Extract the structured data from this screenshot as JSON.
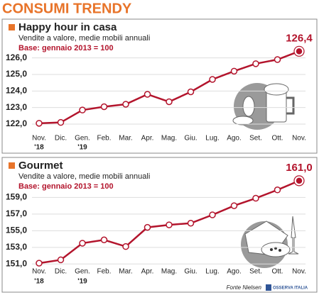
{
  "title": "CONSUMI TRENDY",
  "source": "Fonte Nielsen",
  "logo": "OSSERVA ITALIA",
  "chart_data": [
    {
      "type": "line",
      "title": "Happy hour in casa",
      "subtitle": "Vendite a valore, medie mobili annuali",
      "note": "Base: gennaio 2013 = 100",
      "categories": [
        "Nov.",
        "Dic.",
        "Gen.",
        "Feb.",
        "Mar.",
        "Apr.",
        "Mag.",
        "Giu.",
        "Lug.",
        "Ago.",
        "Set.",
        "Ott.",
        "Nov."
      ],
      "year_labels": [
        "'18",
        null,
        "'19",
        null,
        null,
        null,
        null,
        null,
        null,
        null,
        null,
        null,
        null
      ],
      "series": [
        {
          "color": "#b3142c",
          "values": [
            122.05,
            122.1,
            122.85,
            123.05,
            123.2,
            123.8,
            123.35,
            123.95,
            124.7,
            125.2,
            125.65,
            125.9,
            126.4
          ],
          "value_labels": [
            null,
            null,
            null,
            null,
            null,
            null,
            null,
            null,
            null,
            null,
            null,
            null,
            "126,4"
          ]
        }
      ],
      "ylim": [
        121.7,
        126.8
      ],
      "yticks": [
        {
          "value": 122,
          "label": "122,0"
        },
        {
          "value": 123,
          "label": "123,0"
        },
        {
          "value": 124,
          "label": "124,0"
        },
        {
          "value": 125,
          "label": "125,0"
        },
        {
          "value": 126,
          "label": "126,0"
        }
      ],
      "grid": true
    },
    {
      "type": "line",
      "title": "Gourmet",
      "subtitle": "Vendite a valore, medie mobili annuali",
      "note": "Base: gennaio 2013 = 100",
      "categories": [
        "Nov.",
        "Dic.",
        "Gen.",
        "Feb.",
        "Mar.",
        "Apr.",
        "Mag.",
        "Giu.",
        "Lug.",
        "Ago.",
        "Set.",
        "Ott.",
        "Nov."
      ],
      "year_labels": [
        "'18",
        null,
        "'19",
        null,
        null,
        null,
        null,
        null,
        null,
        null,
        null,
        null,
        null
      ],
      "series": [
        {
          "color": "#b3142c",
          "values": [
            151.1,
            151.5,
            153.5,
            153.9,
            153.1,
            155.4,
            155.7,
            155.9,
            156.9,
            158.0,
            158.9,
            159.9,
            161.0
          ],
          "value_labels": [
            null,
            null,
            null,
            null,
            null,
            null,
            null,
            null,
            null,
            null,
            null,
            null,
            "161,0"
          ]
        }
      ],
      "ylim": [
        150.6,
        161.5
      ],
      "yticks": [
        {
          "value": 151,
          "label": "151,0"
        },
        {
          "value": 153,
          "label": "153,0"
        },
        {
          "value": 155,
          "label": "155,0"
        },
        {
          "value": 157,
          "label": "157,0"
        },
        {
          "value": 159,
          "label": "159,0"
        }
      ],
      "grid": true
    }
  ]
}
